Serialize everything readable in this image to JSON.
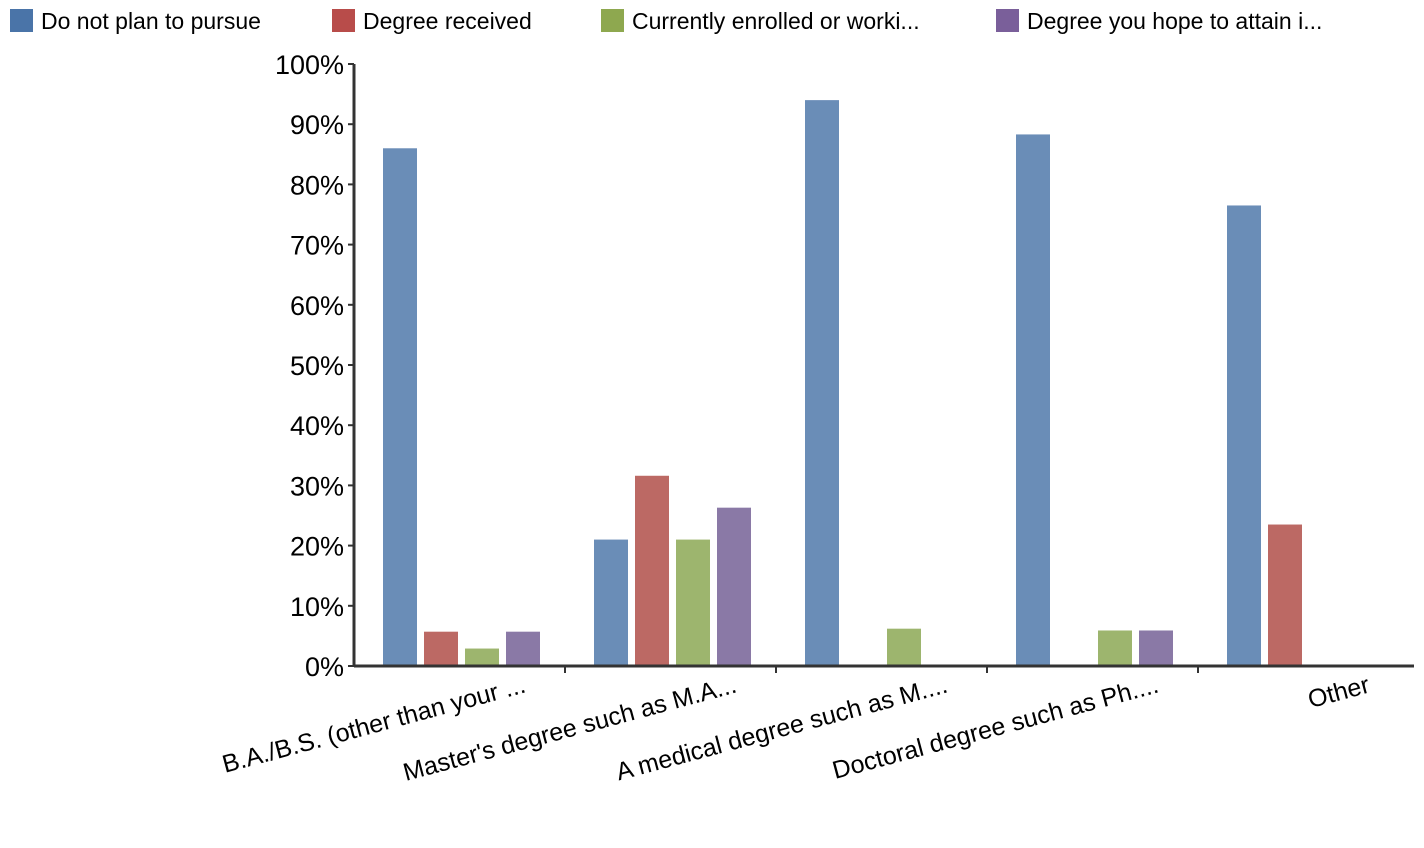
{
  "chart_data": {
    "type": "bar",
    "categories": [
      "B.A./B.S. (other than your ...",
      "Master's degree such as M.A...",
      "A medical degree such as M....",
      "Doctoral degree such as Ph....",
      "Other"
    ],
    "series": [
      {
        "name": "Do not plan to pursue",
        "color": "#6a8db7",
        "swatch": "#4a74a8",
        "values": [
          86,
          21,
          94,
          88.3,
          76.5
        ]
      },
      {
        "name": "Degree received",
        "color": "#bc6964",
        "swatch": "#b84c4a",
        "values": [
          5.7,
          31.6,
          0,
          0,
          23.5
        ]
      },
      {
        "name": "Currently enrolled or worki...",
        "color": "#9db56e",
        "swatch": "#8ea84f",
        "values": [
          2.9,
          21,
          6.2,
          5.9,
          0
        ]
      },
      {
        "name": "Degree you hope to attain i...",
        "color": "#8a79a6",
        "swatch": "#7a5f9a",
        "values": [
          5.7,
          26.3,
          0,
          5.9,
          0
        ]
      }
    ],
    "yticks": [
      "0%",
      "10%",
      "20%",
      "30%",
      "40%",
      "50%",
      "60%",
      "70%",
      "80%",
      "90%",
      "100%"
    ],
    "ylim": [
      0,
      100
    ],
    "legend_position": "top",
    "grid": false
  }
}
